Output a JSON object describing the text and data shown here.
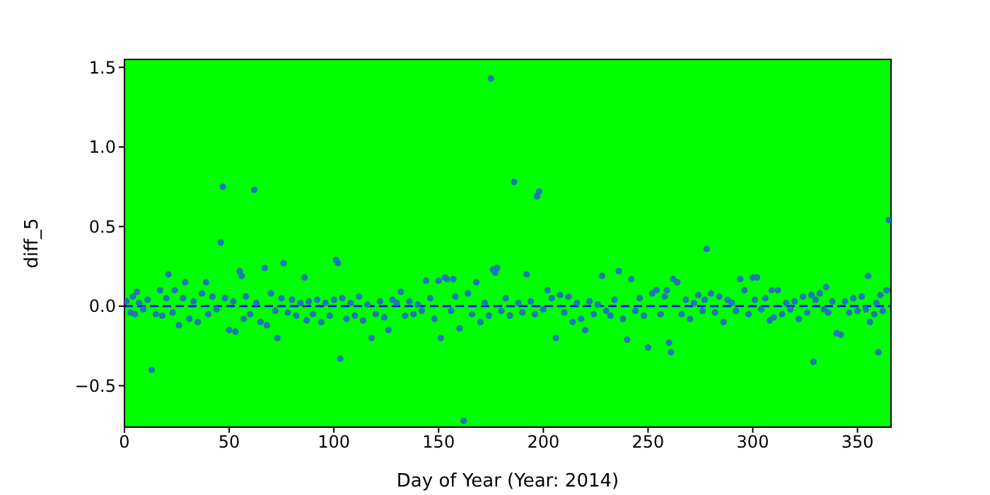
{
  "chart_data": {
    "type": "scatter",
    "xlabel": "Day of Year (Year: 2014)",
    "ylabel": "diff_5",
    "x": [
      1,
      3,
      4,
      5,
      6,
      7,
      9,
      11,
      13,
      15,
      17,
      18,
      20,
      21,
      23,
      24,
      26,
      28,
      29,
      31,
      33,
      35,
      37,
      39,
      40,
      42,
      44,
      46,
      47,
      48,
      50,
      52,
      53,
      55,
      56,
      57,
      58,
      60,
      62,
      63,
      65,
      67,
      68,
      70,
      72,
      73,
      75,
      76,
      78,
      80,
      82,
      84,
      86,
      87,
      88,
      90,
      92,
      94,
      96,
      98,
      100,
      101,
      102,
      103,
      104,
      106,
      108,
      110,
      112,
      114,
      116,
      118,
      120,
      122,
      124,
      126,
      128,
      130,
      132,
      134,
      136,
      138,
      140,
      142,
      144,
      146,
      148,
      150,
      151,
      153,
      154,
      156,
      157,
      158,
      160,
      162,
      164,
      166,
      168,
      170,
      172,
      174,
      175,
      176,
      177,
      178,
      180,
      182,
      184,
      186,
      188,
      190,
      192,
      194,
      196,
      197,
      198,
      200,
      202,
      204,
      206,
      208,
      210,
      212,
      214,
      216,
      218,
      220,
      222,
      224,
      226,
      228,
      230,
      232,
      234,
      236,
      238,
      240,
      242,
      244,
      246,
      248,
      250,
      252,
      254,
      256,
      258,
      259,
      260,
      261,
      262,
      264,
      266,
      268,
      270,
      272,
      274,
      276,
      277,
      278,
      280,
      282,
      284,
      286,
      288,
      290,
      292,
      294,
      296,
      298,
      300,
      301,
      302,
      304,
      306,
      308,
      309,
      310,
      312,
      314,
      316,
      318,
      320,
      322,
      324,
      326,
      328,
      329,
      330,
      332,
      334,
      335,
      336,
      338,
      340,
      342,
      344,
      346,
      348,
      350,
      352,
      354,
      355,
      356,
      358,
      359,
      360,
      361,
      362,
      364,
      365
    ],
    "series": [
      {
        "color": "#1f77b4",
        "values": [
          0.03,
          -0.04,
          0.06,
          -0.05,
          0.09,
          0.02,
          -0.02,
          0.04,
          -0.4,
          -0.05,
          0.1,
          -0.06,
          0.05,
          0.2,
          -0.04,
          0.1,
          -0.12,
          0.05,
          0.15,
          -0.08,
          0.03,
          -0.1,
          0.08,
          0.15,
          -0.05,
          0.06,
          -0.02,
          0.4,
          0.75,
          0.05,
          -0.15,
          0.03,
          -0.16,
          0.22,
          0.19,
          -0.08,
          0.06,
          -0.05,
          0.73,
          0.02,
          -0.1,
          0.24,
          -0.12,
          0.08,
          -0.03,
          -0.2,
          0.05,
          0.27,
          -0.04,
          0.04,
          -0.06,
          0.02,
          0.18,
          -0.09,
          0.03,
          -0.05,
          0.04,
          -0.1,
          0.02,
          -0.06,
          0.04,
          0.29,
          0.27,
          -0.33,
          0.05,
          -0.08,
          0.02,
          -0.06,
          0.06,
          -0.09,
          0.01,
          -0.2,
          -0.05,
          0.03,
          -0.07,
          -0.15,
          0.04,
          0.02,
          0.09,
          -0.06,
          0.03,
          -0.05,
          0.01,
          -0.03,
          0.16,
          0.05,
          -0.08,
          0.16,
          -0.2,
          0.18,
          0.17,
          -0.03,
          0.17,
          0.06,
          -0.14,
          -0.72,
          0.08,
          -0.05,
          0.15,
          -0.1,
          0.02,
          -0.06,
          1.43,
          0.23,
          0.21,
          0.24,
          -0.03,
          0.05,
          -0.06,
          0.78,
          0.02,
          -0.04,
          0.2,
          0.03,
          -0.05,
          0.69,
          0.72,
          -0.02,
          0.1,
          0.05,
          -0.2,
          0.07,
          -0.04,
          0.06,
          -0.1,
          0.02,
          -0.08,
          -0.15,
          0.03,
          -0.05,
          0.01,
          0.19,
          -0.03,
          -0.06,
          0.04,
          0.22,
          -0.08,
          -0.21,
          0.17,
          -0.03,
          0.05,
          -0.06,
          -0.26,
          0.08,
          0.1,
          -0.05,
          0.06,
          0.1,
          -0.23,
          -0.29,
          0.17,
          0.15,
          -0.05,
          0.04,
          -0.08,
          0.02,
          0.07,
          -0.03,
          0.04,
          0.36,
          0.08,
          -0.04,
          0.06,
          -0.1,
          0.04,
          0.02,
          -0.03,
          0.17,
          0.1,
          -0.05,
          0.18,
          0.04,
          0.18,
          -0.02,
          0.05,
          -0.09,
          0.1,
          -0.07,
          0.1,
          -0.05,
          0.02,
          -0.02,
          0.03,
          -0.08,
          0.06,
          -0.04,
          0.07,
          -0.35,
          0.04,
          0.08,
          -0.02,
          0.12,
          -0.04,
          0.03,
          -0.17,
          -0.18,
          0.03,
          -0.04,
          0.05,
          -0.03,
          0.06,
          -0.02,
          0.19,
          -0.1,
          -0.05,
          0.02,
          -0.29,
          0.07,
          -0.03,
          0.1,
          0.54
        ]
      }
    ],
    "xlim": [
      0,
      366
    ],
    "ylim": [
      -0.76,
      1.55
    ],
    "xticks": [
      0,
      50,
      100,
      150,
      200,
      250,
      300,
      350
    ],
    "yticks": [
      {
        "value": -0.5,
        "label": "−0.5"
      },
      {
        "value": 0,
        "label": "0.0"
      },
      {
        "value": 0.5,
        "label": "0.5"
      },
      {
        "value": 1,
        "label": "1.0"
      },
      {
        "value": 1.5,
        "label": "1.5"
      }
    ],
    "ref_lines": [
      {
        "axis": "y",
        "value": 0,
        "color": "#0000ff",
        "line_style": "dashed"
      }
    ],
    "marker": "circle"
  }
}
